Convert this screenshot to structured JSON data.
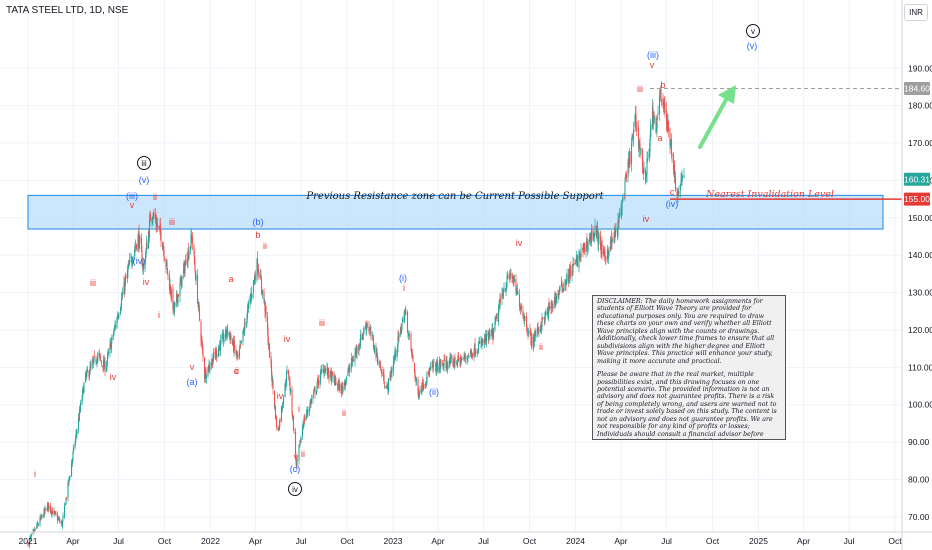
{
  "header": {
    "symbol_line": "TATA STEEL LTD, 1D, NSE",
    "currency": "INR"
  },
  "annotations": {
    "zone_text": "Previous Resistance zone can be Current Possible Support",
    "invalidation_text": "Nearest Invalidation Level",
    "disclaimer_p1": "DISCLAIMER:  The daily homework assignments for students of Elliott Wave Theory are provided for educational purposes only. You are required to draw these charts on your own and verify whether all Elliott Wave principles align with the counts or drawings. Additionally, check lower time frames to ensure that all subdivisions align with the higher degree and Elliott Wave principles. This practice will enhance your study, making it more accurate and practical.",
    "disclaimer_p2": "Please be aware that in the real market, multiple possibilities exist, and this drawing focuses on one potential scenario. The provided information is not an advisory and does not guarantee profits. There is a risk of being completely wrong, and users are warned not to trade or invest solely based on this study. The content is not an advisory and does not guarantee profits. We are not responsible for any kind of profits or losses; Individuals should consult a financial advisor before making any trading or investment decisions."
  },
  "colors": {
    "up": "#26a69a",
    "down": "#ef5350",
    "wave_red": "#e53935",
    "wave_blue": "#2962ff",
    "zone_fill": "#bbdefb",
    "zone_border": "#1e88e5",
    "arrow": "#76e08a"
  },
  "chart_data": {
    "type": "candlestick",
    "title": "TATA STEEL LTD, 1D, NSE",
    "x_ticks": [
      "2021",
      "Apr",
      "Jul",
      "Oct",
      "2022",
      "Apr",
      "Jul",
      "Oct",
      "2023",
      "Apr",
      "Jul",
      "Oct",
      "2024",
      "Apr",
      "Jul",
      "Oct",
      "2025",
      "Apr",
      "Jul",
      "Oct"
    ],
    "y_ticks": [
      70,
      80,
      90,
      100,
      110,
      120,
      130,
      140,
      150,
      160,
      170,
      180,
      190
    ],
    "ylim": [
      61,
      199
    ],
    "price_path": [
      [
        "2021-01-01",
        63
      ],
      [
        "2021-02-10",
        73
      ],
      [
        "2021-03-10",
        68
      ],
      [
        "2021-04-25",
        107
      ],
      [
        "2021-05-20",
        113
      ],
      [
        "2021-06-05",
        110
      ],
      [
        "2021-07-10",
        130
      ],
      [
        "2021-07-22",
        137
      ],
      [
        "2021-08-10",
        145
      ],
      [
        "2021-08-20",
        136
      ],
      [
        "2021-09-05",
        152
      ],
      [
        "2021-09-25",
        145
      ],
      [
        "2021-10-20",
        125
      ],
      [
        "2021-11-25",
        145
      ],
      [
        "2021-12-20",
        108
      ],
      [
        "2022-02-05",
        120
      ],
      [
        "2022-02-25",
        112
      ],
      [
        "2022-04-05",
        138
      ],
      [
        "2022-04-20",
        126
      ],
      [
        "2022-05-15",
        92
      ],
      [
        "2022-06-05",
        110
      ],
      [
        "2022-06-15",
        96
      ],
      [
        "2022-06-22",
        83
      ],
      [
        "2022-07-05",
        95
      ],
      [
        "2022-08-15",
        110
      ],
      [
        "2022-09-20",
        104
      ],
      [
        "2022-11-10",
        122
      ],
      [
        "2022-12-20",
        104
      ],
      [
        "2023-01-25",
        125
      ],
      [
        "2023-02-20",
        103
      ],
      [
        "2023-03-20",
        110
      ],
      [
        "2023-05-20",
        112
      ],
      [
        "2023-07-20",
        119
      ],
      [
        "2023-08-10",
        131
      ],
      [
        "2023-08-25",
        135
      ],
      [
        "2023-09-10",
        128
      ],
      [
        "2023-10-05",
        117
      ],
      [
        "2023-12-20",
        135
      ],
      [
        "2024-02-10",
        147
      ],
      [
        "2024-02-28",
        139
      ],
      [
        "2024-03-25",
        147
      ],
      [
        "2024-04-10",
        159
      ],
      [
        "2024-04-30",
        176
      ],
      [
        "2024-05-20",
        160
      ],
      [
        "2024-06-03",
        178
      ],
      [
        "2024-06-10",
        172
      ],
      [
        "2024-06-18",
        185
      ],
      [
        "2024-06-28",
        178
      ],
      [
        "2024-07-10",
        170
      ],
      [
        "2024-07-18",
        160
      ],
      [
        "2024-07-25",
        156
      ],
      [
        "2024-08-01",
        162
      ],
      [
        "2024-08-05",
        160.3
      ]
    ],
    "last_close": 160.3,
    "last_close_label": "160.31",
    "high_label": "184.60",
    "invalidation_label": "155.00",
    "support_zone": [
      147,
      156
    ],
    "target_marker": {
      "degree_black": "v",
      "degree_blue": "(v)"
    },
    "wave_labels_red": [
      "i",
      "iii",
      "iv",
      "v",
      "ii",
      "iii",
      "iv",
      "i",
      "v",
      "ii",
      "iv",
      "a",
      "b",
      "c",
      "ii",
      "i",
      "iv",
      "iii",
      "i",
      "v",
      "ii",
      "i",
      "ii",
      "iii",
      "v",
      "ii",
      "iv",
      "b",
      "a",
      "c",
      "iv"
    ],
    "wave_labels_blue": [
      "(iii)",
      "(v)",
      "(iv)",
      "(b)",
      "(a)",
      "(c)",
      "(i)",
      "(ii)",
      "(iii)",
      "(iv)",
      "(v)"
    ],
    "wave_labels_circled": [
      "iii",
      "iv",
      "v"
    ]
  }
}
